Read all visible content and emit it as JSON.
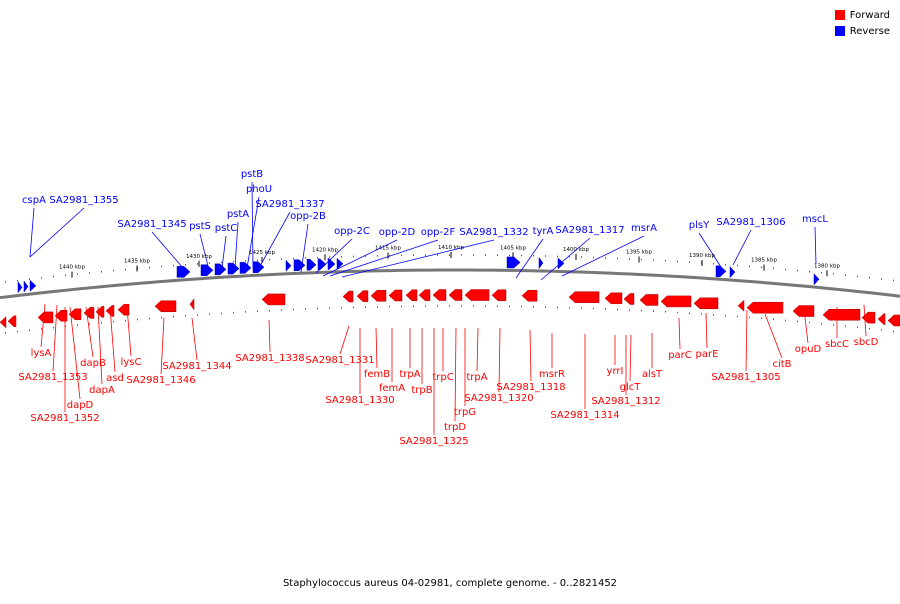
{
  "legend": {
    "forward": {
      "label": "Forward",
      "color": "#ff0000"
    },
    "reverse": {
      "label": "Reverse",
      "color": "#0000ff"
    }
  },
  "caption": "Staphylococcus aureus 04-02981, complete genome. - 0..2821452",
  "scale_ticks": [
    {
      "label": "1440 kbp"
    },
    {
      "label": "1435 kbp"
    },
    {
      "label": "1430 kbp"
    },
    {
      "label": "1425 kbp"
    },
    {
      "label": "1420 kbp"
    },
    {
      "label": "1415 kbp"
    },
    {
      "label": "1410 kbp"
    },
    {
      "label": "1405 kbp"
    },
    {
      "label": "1400 kbp"
    },
    {
      "label": "1395 kbp"
    },
    {
      "label": "1390 kbp"
    },
    {
      "label": "1385 kbp"
    },
    {
      "label": "1380 kbp"
    }
  ],
  "reverse_genes": [
    {
      "name": "cspA"
    },
    {
      "name": "SA2981_1355"
    },
    {
      "name": "SA2981_1345"
    },
    {
      "name": "pstS"
    },
    {
      "name": "pstC"
    },
    {
      "name": "pstA"
    },
    {
      "name": "phoU"
    },
    {
      "name": "pstB"
    },
    {
      "name": "SA2981_1337"
    },
    {
      "name": "opp-2B"
    },
    {
      "name": "opp-2C"
    },
    {
      "name": "opp-2D"
    },
    {
      "name": "opp-2F"
    },
    {
      "name": "SA2981_1332"
    },
    {
      "name": "tyrA"
    },
    {
      "name": "SA2981_1317"
    },
    {
      "name": "msrA"
    },
    {
      "name": "plsY"
    },
    {
      "name": "SA2981_1306"
    },
    {
      "name": "mscL"
    }
  ],
  "forward_genes": [
    {
      "name": "lysA"
    },
    {
      "name": "SA2981_1353"
    },
    {
      "name": "dapD"
    },
    {
      "name": "SA2981_1352"
    },
    {
      "name": "dapB"
    },
    {
      "name": "dapA"
    },
    {
      "name": "asd"
    },
    {
      "name": "lysC"
    },
    {
      "name": "SA2981_1346"
    },
    {
      "name": "SA2981_1344"
    },
    {
      "name": "SA2981_1338"
    },
    {
      "name": "SA2981_1331"
    },
    {
      "name": "SA2981_1330"
    },
    {
      "name": "femB"
    },
    {
      "name": "femA"
    },
    {
      "name": "trpA"
    },
    {
      "name": "trpB"
    },
    {
      "name": "trpC"
    },
    {
      "name": "SA2981_1325"
    },
    {
      "name": "trpD"
    },
    {
      "name": "trpG"
    },
    {
      "name": "trpA"
    },
    {
      "name": "SA2981_1320"
    },
    {
      "name": "SA2981_1318"
    },
    {
      "name": "msrR"
    },
    {
      "name": "SA2981_1314"
    },
    {
      "name": "SA2981_1312"
    },
    {
      "name": "yrrI"
    },
    {
      "name": "glcT"
    },
    {
      "name": "alsT"
    },
    {
      "name": "parC"
    },
    {
      "name": "parE"
    },
    {
      "name": "SA2981_1305"
    },
    {
      "name": "citB"
    },
    {
      "name": "opuD"
    },
    {
      "name": "sbcC"
    },
    {
      "name": "sbcD"
    }
  ]
}
